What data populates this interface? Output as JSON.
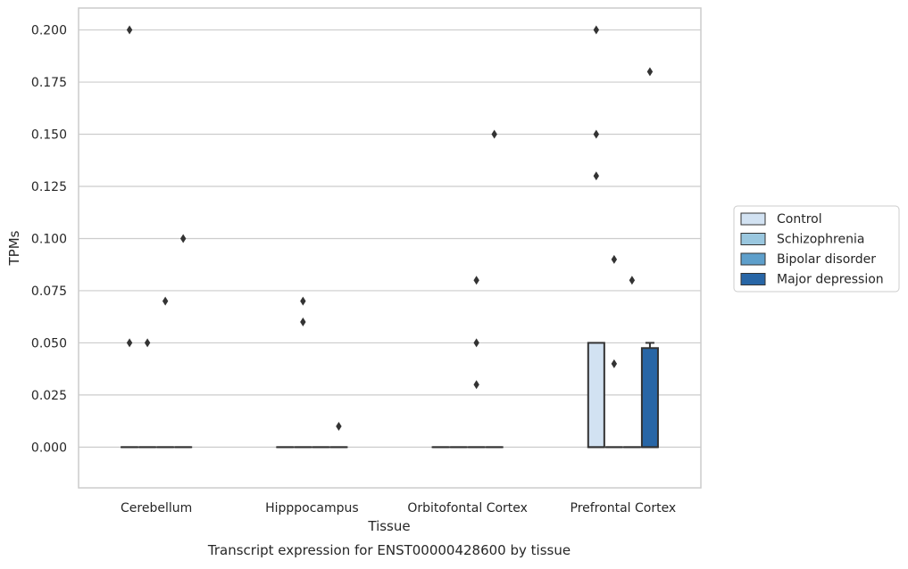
{
  "chart_data": {
    "type": "box",
    "caption": "Transcript expression for ENST00000428600 by tissue",
    "xlabel": "Tissue",
    "ylabel": "TPMs",
    "ylim": [
      -0.0195,
      0.2105
    ],
    "yticks": [
      0.0,
      0.025,
      0.05,
      0.075,
      0.1,
      0.125,
      0.15,
      0.175,
      0.2
    ],
    "ytick_labels": [
      "0.000",
      "0.025",
      "0.050",
      "0.075",
      "0.100",
      "0.125",
      "0.150",
      "0.175",
      "0.200"
    ],
    "grid": "horizontal",
    "legend_position": "right",
    "categories": [
      "Cerebellum",
      "Hipppocampus",
      "Orbitofontal Cortex",
      "Prefrontal Cortex"
    ],
    "series": [
      {
        "name": "Control",
        "color": "#d2e2f2",
        "boxes": [
          {
            "q1": 0.0,
            "median": 0.0,
            "q3": 0.0,
            "whisker_low": 0.0,
            "whisker_high": 0.0,
            "outliers": [
              0.2,
              0.05
            ]
          },
          {
            "q1": 0.0,
            "median": 0.0,
            "q3": 0.0,
            "whisker_low": 0.0,
            "whisker_high": 0.0,
            "outliers": []
          },
          {
            "q1": 0.0,
            "median": 0.0,
            "q3": 0.0,
            "whisker_low": 0.0,
            "whisker_high": 0.0,
            "outliers": []
          },
          {
            "q1": 0.0,
            "median": 0.0,
            "q3": 0.05,
            "whisker_low": 0.0,
            "whisker_high": 0.05,
            "outliers": [
              0.2,
              0.15,
              0.13
            ]
          }
        ]
      },
      {
        "name": "Schizophrenia",
        "color": "#9ac7df",
        "boxes": [
          {
            "q1": 0.0,
            "median": 0.0,
            "q3": 0.0,
            "whisker_low": 0.0,
            "whisker_high": 0.0,
            "outliers": [
              0.05
            ]
          },
          {
            "q1": 0.0,
            "median": 0.0,
            "q3": 0.0,
            "whisker_low": 0.0,
            "whisker_high": 0.0,
            "outliers": [
              0.07,
              0.06
            ]
          },
          {
            "q1": 0.0,
            "median": 0.0,
            "q3": 0.0,
            "whisker_low": 0.0,
            "whisker_high": 0.0,
            "outliers": []
          },
          {
            "q1": 0.0,
            "median": 0.0,
            "q3": 0.0,
            "whisker_low": 0.0,
            "whisker_high": 0.0,
            "outliers": [
              0.09,
              0.04
            ]
          }
        ]
      },
      {
        "name": "Bipolar disorder",
        "color": "#5e9fcb",
        "boxes": [
          {
            "q1": 0.0,
            "median": 0.0,
            "q3": 0.0,
            "whisker_low": 0.0,
            "whisker_high": 0.0,
            "outliers": [
              0.07
            ]
          },
          {
            "q1": 0.0,
            "median": 0.0,
            "q3": 0.0,
            "whisker_low": 0.0,
            "whisker_high": 0.0,
            "outliers": []
          },
          {
            "q1": 0.0,
            "median": 0.0,
            "q3": 0.0,
            "whisker_low": 0.0,
            "whisker_high": 0.0,
            "outliers": [
              0.08,
              0.05,
              0.03
            ]
          },
          {
            "q1": 0.0,
            "median": 0.0,
            "q3": 0.0,
            "whisker_low": 0.0,
            "whisker_high": 0.0,
            "outliers": [
              0.08
            ]
          }
        ]
      },
      {
        "name": "Major depression",
        "color": "#2866a6",
        "boxes": [
          {
            "q1": 0.0,
            "median": 0.0,
            "q3": 0.0,
            "whisker_low": 0.0,
            "whisker_high": 0.0,
            "outliers": [
              0.1
            ]
          },
          {
            "q1": 0.0,
            "median": 0.0,
            "q3": 0.0,
            "whisker_low": 0.0,
            "whisker_high": 0.0,
            "outliers": [
              0.01
            ]
          },
          {
            "q1": 0.0,
            "median": 0.0,
            "q3": 0.0,
            "whisker_low": 0.0,
            "whisker_high": 0.0,
            "outliers": [
              0.15
            ]
          },
          {
            "q1": 0.0,
            "median": 0.0,
            "q3": 0.0475,
            "whisker_low": 0.0,
            "whisker_high": 0.05,
            "outliers": [
              0.18
            ]
          }
        ]
      }
    ]
  },
  "colors": {
    "edge": "#333333",
    "grid": "#cccccc",
    "frame": "#cccccc"
  }
}
